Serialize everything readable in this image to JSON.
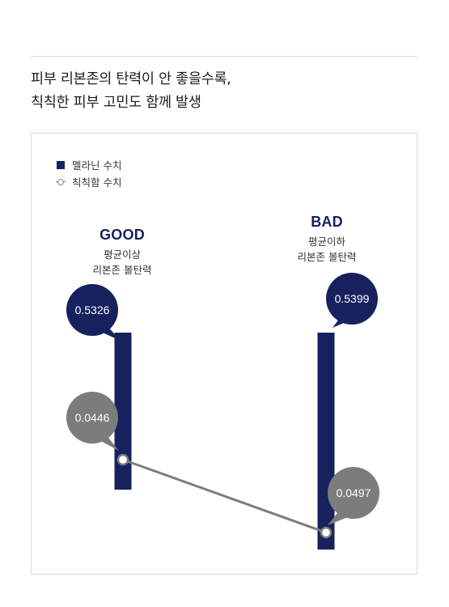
{
  "headline": {
    "line1": "피부 리본존의 탄력이 안 좋을수록,",
    "line2": "칙칙한 피부 고민도 함께 발생"
  },
  "legend": {
    "melanin": "멜라닌 수치",
    "dullness": "칙칙함 수치"
  },
  "colors": {
    "melanin": "#16215e",
    "dullness": "#7c7c7c"
  },
  "chart_data": {
    "type": "bar",
    "categories": [
      "GOOD",
      "BAD"
    ],
    "category_desc": [
      [
        "평균이상",
        "리본존 볼탄력"
      ],
      [
        "평균이하",
        "리본존 볼탄력"
      ]
    ],
    "series": [
      {
        "name": "멜라닌 수치",
        "type": "bar",
        "values": [
          0.5326,
          0.5399
        ],
        "labels": [
          "0.5326",
          "0.5399"
        ]
      },
      {
        "name": "칙칙함 수치",
        "type": "line",
        "values": [
          0.0446,
          0.0497
        ],
        "labels": [
          "0.0446",
          "0.0497"
        ]
      }
    ]
  }
}
